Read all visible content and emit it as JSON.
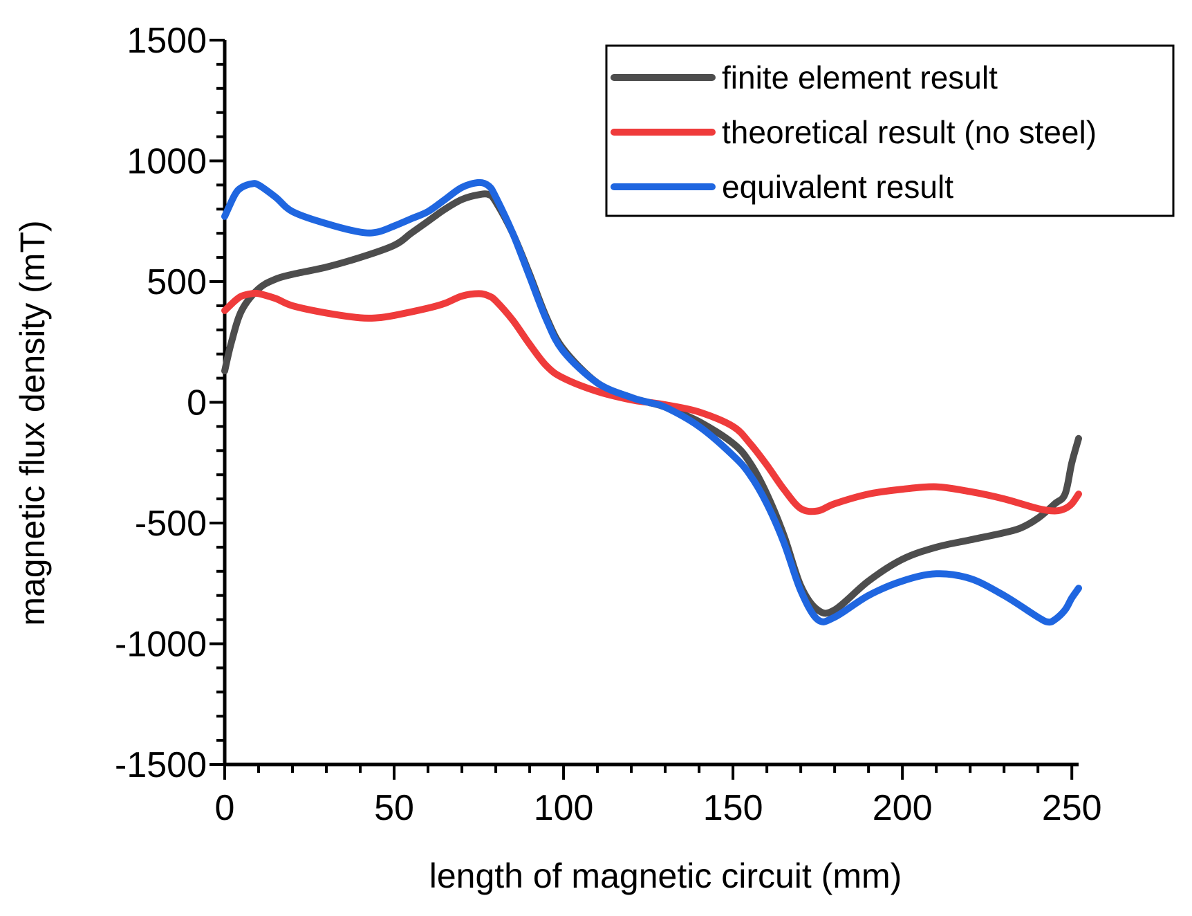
{
  "chart_data": {
    "type": "line",
    "title": "",
    "xlabel": "length of magnetic circuit (mm)",
    "ylabel": "magnetic flux density (mT)",
    "xlim": [
      0,
      252
    ],
    "ylim": [
      -1500,
      1500
    ],
    "x_ticks": [
      0,
      50,
      100,
      150,
      200,
      250
    ],
    "y_ticks": [
      -1500,
      -1000,
      -500,
      0,
      500,
      1000,
      1500
    ],
    "grid": false,
    "legend_position": "top-right",
    "series": [
      {
        "name": "finite element result",
        "color": "#4d4d4d",
        "x": [
          0,
          2,
          5,
          10,
          15,
          20,
          30,
          40,
          50,
          55,
          60,
          65,
          70,
          75,
          78,
          80,
          85,
          90,
          95,
          100,
          110,
          120,
          125,
          130,
          140,
          150,
          155,
          160,
          165,
          170,
          175,
          180,
          190,
          200,
          210,
          220,
          230,
          235,
          240,
          245,
          248,
          250,
          252
        ],
        "values": [
          130,
          250,
          380,
          470,
          510,
          530,
          560,
          600,
          650,
          700,
          750,
          800,
          840,
          860,
          860,
          830,
          700,
          530,
          350,
          220,
          80,
          20,
          0,
          -20,
          -80,
          -170,
          -250,
          -380,
          -550,
          -760,
          -860,
          -860,
          -740,
          -650,
          -600,
          -570,
          -540,
          -520,
          -480,
          -420,
          -380,
          -250,
          -150
        ]
      },
      {
        "name": "theoretical result (no steel)",
        "color": "#ef3b3b",
        "x": [
          0,
          3,
          5,
          8,
          10,
          15,
          20,
          30,
          40,
          45,
          50,
          60,
          65,
          70,
          75,
          78,
          80,
          85,
          90,
          95,
          100,
          110,
          120,
          125,
          130,
          140,
          150,
          155,
          160,
          165,
          170,
          175,
          180,
          190,
          200,
          210,
          220,
          230,
          240,
          245,
          248,
          250,
          252
        ],
        "values": [
          380,
          420,
          440,
          450,
          450,
          430,
          400,
          370,
          350,
          350,
          360,
          390,
          410,
          440,
          450,
          440,
          420,
          340,
          240,
          150,
          100,
          45,
          10,
          0,
          -10,
          -40,
          -100,
          -170,
          -260,
          -360,
          -440,
          -450,
          -420,
          -380,
          -360,
          -350,
          -370,
          -400,
          -440,
          -450,
          -440,
          -420,
          -380
        ]
      },
      {
        "name": "equivalent result",
        "color": "#1f66e0",
        "x": [
          0,
          3,
          5,
          8,
          10,
          15,
          20,
          30,
          40,
          45,
          50,
          55,
          60,
          65,
          70,
          75,
          78,
          80,
          85,
          90,
          95,
          100,
          110,
          120,
          125,
          130,
          140,
          150,
          155,
          160,
          165,
          170,
          175,
          180,
          190,
          200,
          210,
          220,
          230,
          240,
          243,
          245,
          248,
          250,
          252
        ],
        "values": [
          770,
          860,
          890,
          905,
          900,
          850,
          790,
          740,
          705,
          705,
          730,
          760,
          790,
          840,
          890,
          910,
          895,
          850,
          700,
          520,
          340,
          210,
          80,
          20,
          0,
          -20,
          -100,
          -220,
          -300,
          -420,
          -580,
          -780,
          -900,
          -890,
          -800,
          -740,
          -710,
          -730,
          -800,
          -890,
          -910,
          -900,
          -860,
          -810,
          -770
        ]
      }
    ]
  }
}
